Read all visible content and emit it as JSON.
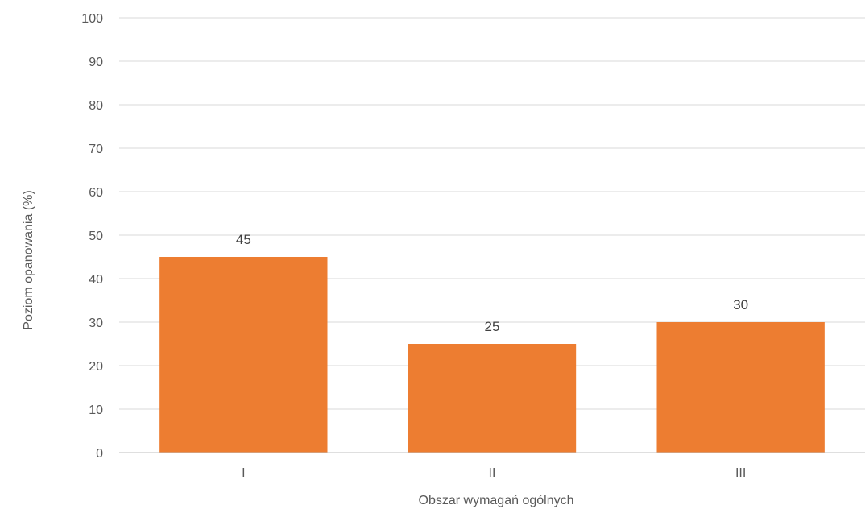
{
  "chart_data": {
    "type": "bar",
    "categories": [
      "I",
      "II",
      "III"
    ],
    "values": [
      45,
      25,
      30
    ],
    "data_labels": [
      "45",
      "25",
      "30"
    ],
    "xlabel": "Obszar wymagań ogólnych",
    "ylabel": "Poziom opanowania (%)",
    "ylim": [
      0,
      100
    ],
    "yticks": [
      0,
      10,
      20,
      30,
      40,
      50,
      60,
      70,
      80,
      90,
      100
    ],
    "grid": true,
    "legend": "none",
    "bar_color": "#ED7D31"
  }
}
